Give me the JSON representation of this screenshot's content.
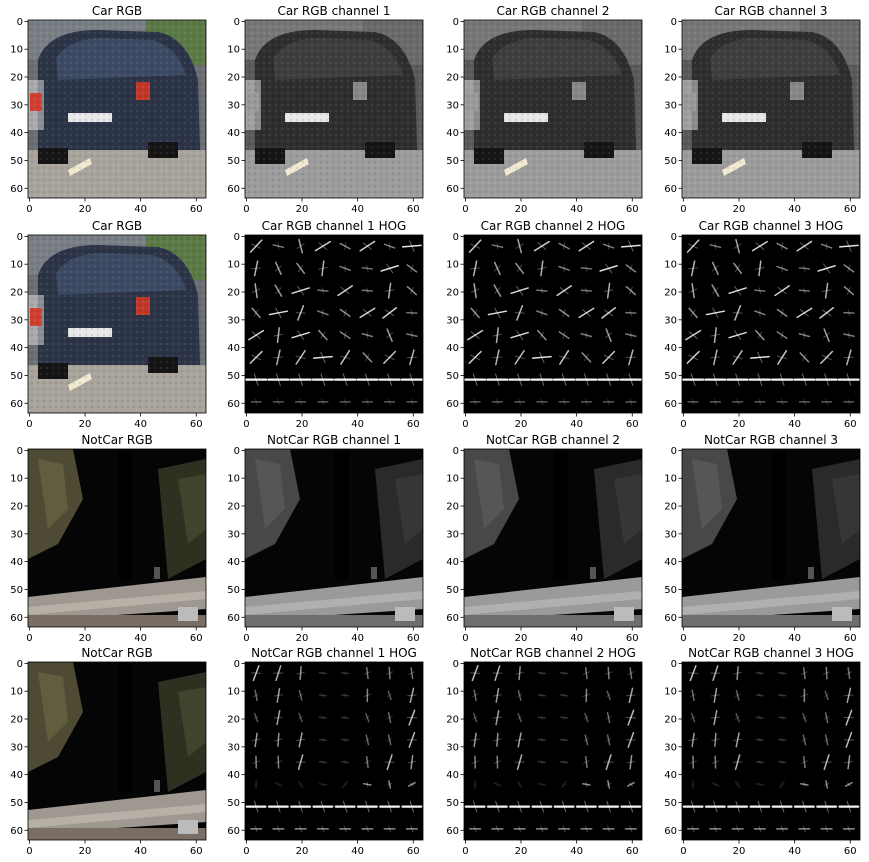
{
  "figure": {
    "panels": [
      {
        "title": "Car RGB",
        "kind": "car-rgb"
      },
      {
        "title": "Car RGB channel 1",
        "kind": "car-ch1"
      },
      {
        "title": "Car RGB channel 2",
        "kind": "car-ch2"
      },
      {
        "title": "Car RGB channel 3",
        "kind": "car-ch3"
      },
      {
        "title": "Car RGB",
        "kind": "car-rgb"
      },
      {
        "title": "Car RGB channel 1 HOG",
        "kind": "car-hog"
      },
      {
        "title": "Car RGB channel 2 HOG",
        "kind": "car-hog"
      },
      {
        "title": "Car RGB channel 3 HOG",
        "kind": "car-hog"
      },
      {
        "title": "NotCar RGB",
        "kind": "notcar-rgb"
      },
      {
        "title": "NotCar RGB channel 1",
        "kind": "notcar-gray"
      },
      {
        "title": "NotCar RGB channel 2",
        "kind": "notcar-gray"
      },
      {
        "title": "NotCar RGB channel 3",
        "kind": "notcar-gray"
      },
      {
        "title": "NotCar RGB",
        "kind": "notcar-rgb"
      },
      {
        "title": "NotCar RGB channel 1 HOG",
        "kind": "notcar-hog"
      },
      {
        "title": "NotCar RGB channel 2 HOG",
        "kind": "notcar-hog"
      },
      {
        "title": "NotCar RGB channel 3 HOG",
        "kind": "notcar-hog"
      }
    ],
    "x_ticks": [
      0,
      20,
      40,
      60
    ],
    "y_ticks": [
      0,
      10,
      20,
      30,
      40,
      50,
      60
    ],
    "image_extent": [
      -0.5,
      63.5
    ],
    "hog_grid": {
      "cells_per_side": 8,
      "max_pixel": 63
    }
  }
}
